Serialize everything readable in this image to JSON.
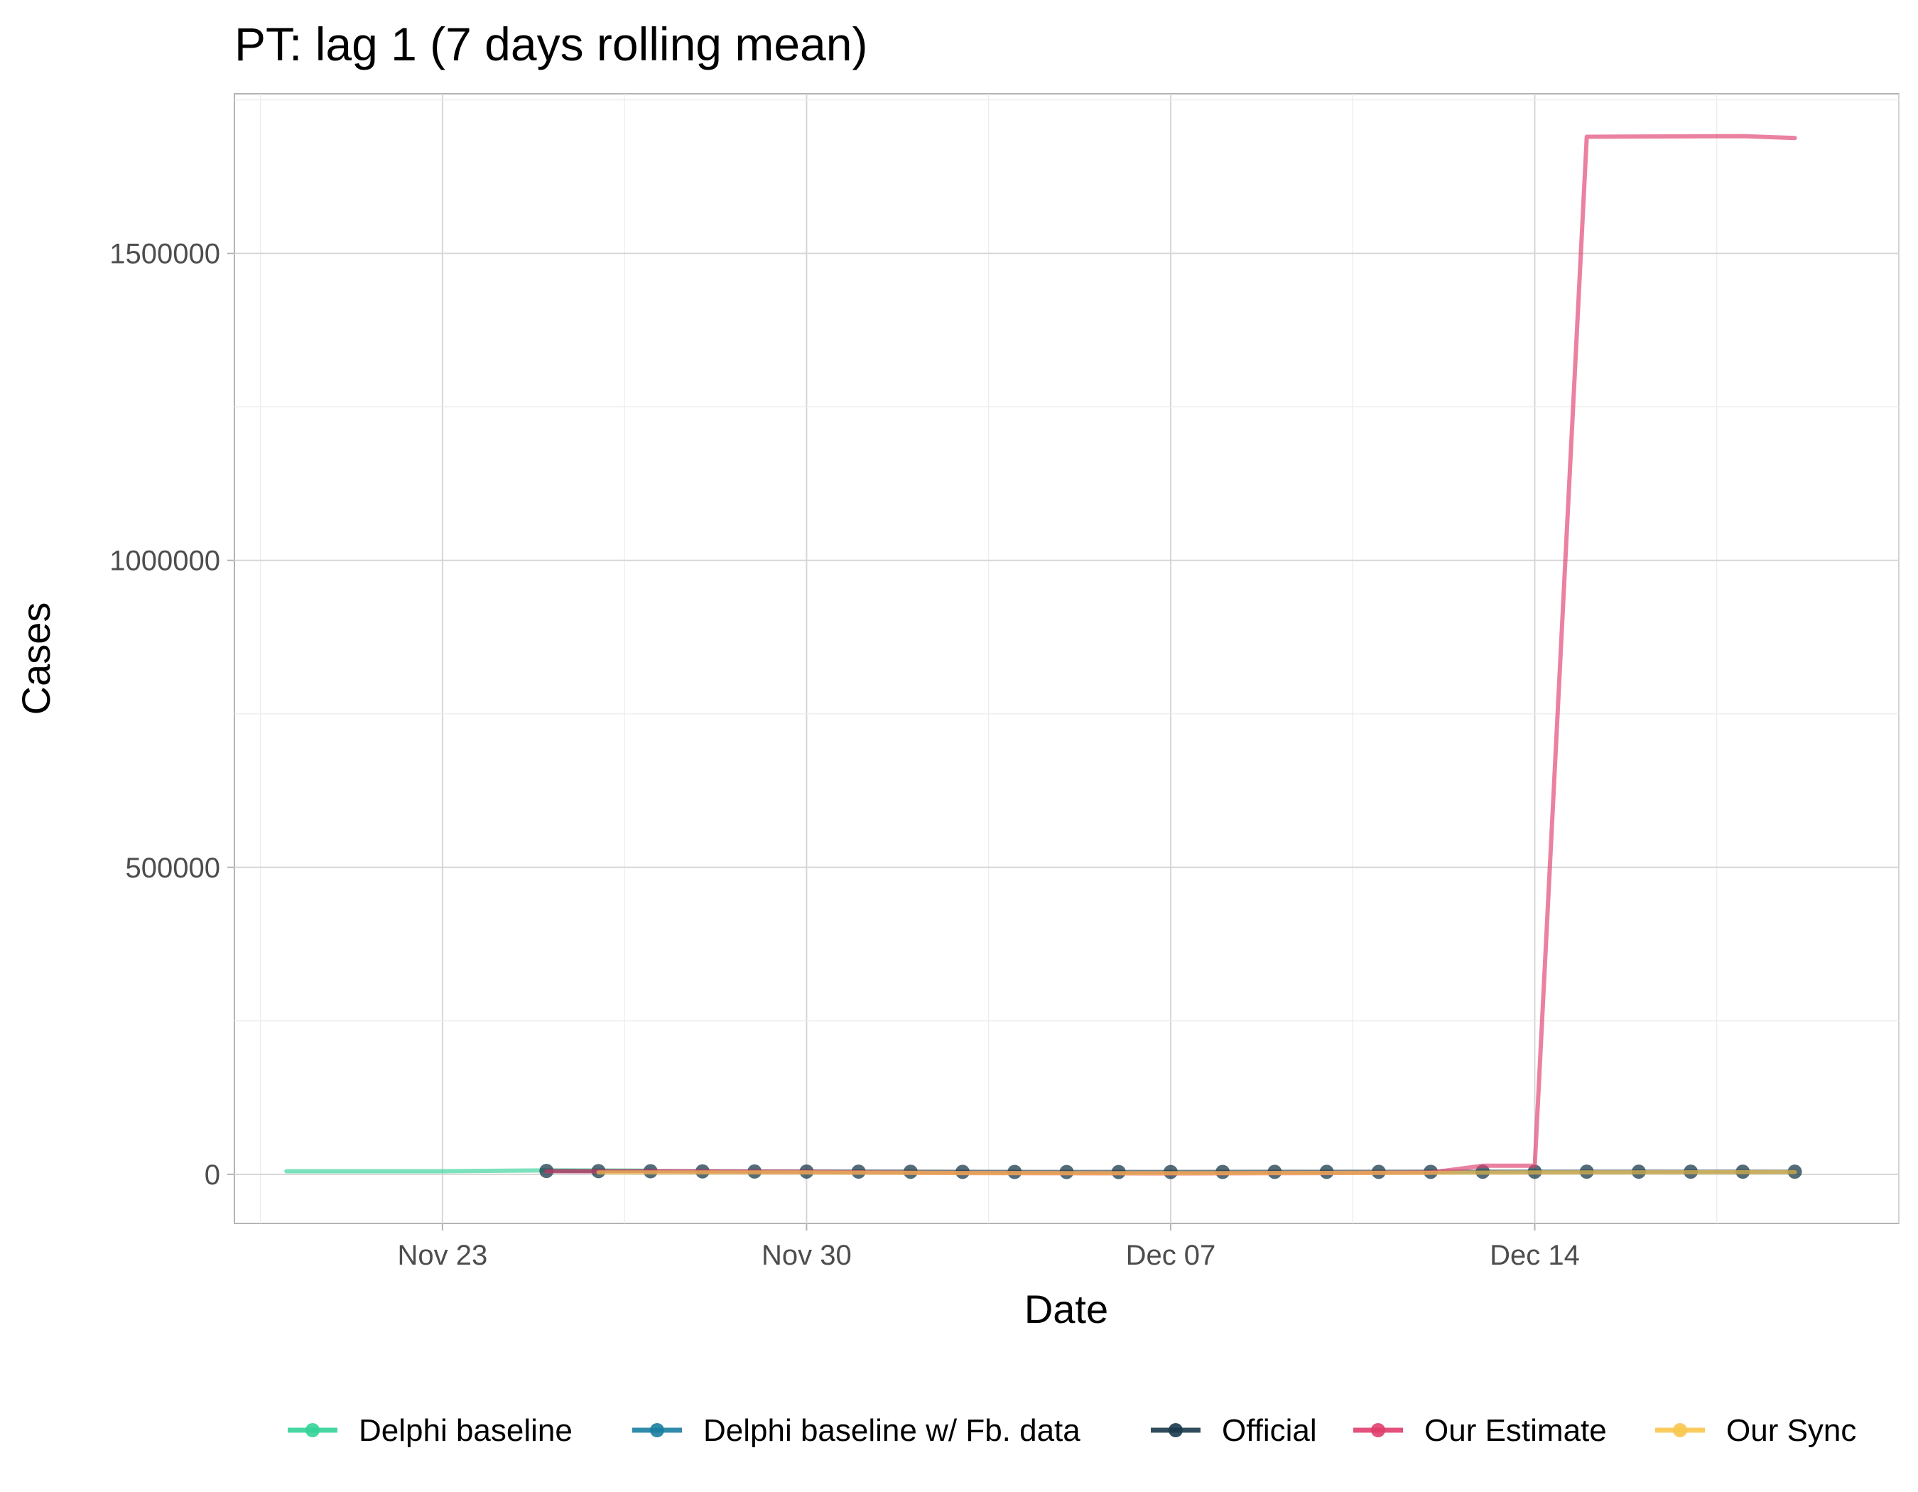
{
  "chart_data": {
    "type": "line",
    "title": "PT: lag 1 (7 days rolling mean)",
    "xlabel": "Date",
    "ylabel": "Cases",
    "x_range": [
      "2020-11-19",
      "2020-12-21"
    ],
    "ylim": [
      -80000,
      1760000
    ],
    "x_ticks": [
      {
        "date": "2020-11-23",
        "label": "Nov 23"
      },
      {
        "date": "2020-11-30",
        "label": "Nov 30"
      },
      {
        "date": "2020-12-07",
        "label": "Dec 07"
      },
      {
        "date": "2020-12-14",
        "label": "Dec 14"
      }
    ],
    "y_ticks": [
      {
        "value": 0,
        "label": "0"
      },
      {
        "value": 500000,
        "label": "500000"
      },
      {
        "value": 1000000,
        "label": "1000000"
      },
      {
        "value": 1500000,
        "label": "1500000"
      }
    ],
    "grid": true,
    "legend_position": "bottom",
    "series": [
      {
        "name": "Delphi baseline",
        "color": "#34d399",
        "markers": false,
        "points": [
          [
            "2020-11-20",
            5000
          ],
          [
            "2020-11-23",
            5000
          ],
          [
            "2020-11-25",
            6500
          ],
          [
            "2020-11-27",
            6000
          ]
        ]
      },
      {
        "name": "Delphi baseline w/ Fb. data",
        "color": "#1b7ea1",
        "markers": false,
        "points": []
      },
      {
        "name": "Official",
        "color": "#1b3a4b",
        "markers": true,
        "points": [
          [
            "2020-11-25",
            5500
          ],
          [
            "2020-11-26",
            5200
          ],
          [
            "2020-11-27",
            5000
          ],
          [
            "2020-11-28",
            4800
          ],
          [
            "2020-11-29",
            4600
          ],
          [
            "2020-11-30",
            4500
          ],
          [
            "2020-12-01",
            4400
          ],
          [
            "2020-12-02",
            4200
          ],
          [
            "2020-12-03",
            4000
          ],
          [
            "2020-12-04",
            3900
          ],
          [
            "2020-12-05",
            3800
          ],
          [
            "2020-12-06",
            3800
          ],
          [
            "2020-12-07",
            3800
          ],
          [
            "2020-12-08",
            3900
          ],
          [
            "2020-12-09",
            4000
          ],
          [
            "2020-12-10",
            4000
          ],
          [
            "2020-12-11",
            4000
          ],
          [
            "2020-12-12",
            4100
          ],
          [
            "2020-12-13",
            4200
          ],
          [
            "2020-12-14",
            4200
          ],
          [
            "2020-12-15",
            4300
          ],
          [
            "2020-12-16",
            4300
          ],
          [
            "2020-12-17",
            4300
          ],
          [
            "2020-12-18",
            4300
          ],
          [
            "2020-12-19",
            4300
          ]
        ]
      },
      {
        "name": "Our Estimate",
        "color": "#e03e6e",
        "markers": false,
        "points": [
          [
            "2020-11-25",
            5000
          ],
          [
            "2020-11-27",
            5000
          ],
          [
            "2020-11-30",
            4000
          ],
          [
            "2020-12-03",
            2000
          ],
          [
            "2020-12-07",
            1500
          ],
          [
            "2020-12-10",
            2000
          ],
          [
            "2020-12-12",
            3000
          ],
          [
            "2020-12-13",
            14000
          ],
          [
            "2020-12-14",
            14000
          ],
          [
            "2020-12-15",
            1690000
          ],
          [
            "2020-12-18",
            1691000
          ],
          [
            "2020-12-19",
            1688000
          ]
        ]
      },
      {
        "name": "Our Sync",
        "color": "#f9c74f",
        "markers": false,
        "points": [
          [
            "2020-11-26",
            3000
          ],
          [
            "2020-11-30",
            3000
          ],
          [
            "2020-12-03",
            2000
          ],
          [
            "2020-12-07",
            1800
          ],
          [
            "2020-12-12",
            2500
          ],
          [
            "2020-12-14",
            3000
          ],
          [
            "2020-12-19",
            3500
          ]
        ]
      }
    ]
  }
}
